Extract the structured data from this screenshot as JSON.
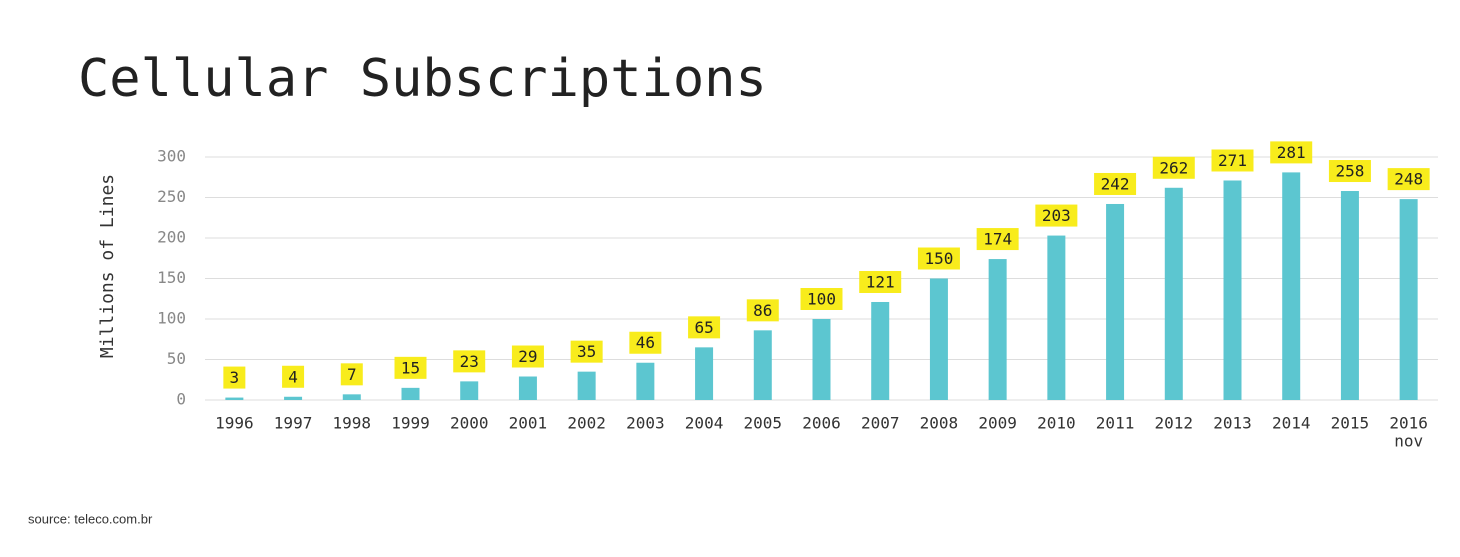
{
  "chart_data": {
    "type": "bar",
    "title": "Cellular Subscriptions",
    "y_label": "Millions of Lines",
    "categories": [
      "1996",
      "1997",
      "1998",
      "1999",
      "2000",
      "2001",
      "2002",
      "2003",
      "2004",
      "2005",
      "2006",
      "2007",
      "2008",
      "2009",
      "2010",
      "2011",
      "2012",
      "2013",
      "2014",
      "2015",
      "2016"
    ],
    "values": [
      3,
      4,
      7,
      15,
      23,
      29,
      35,
      46,
      65,
      86,
      100,
      121,
      150,
      174,
      203,
      242,
      262,
      271,
      281,
      258,
      248
    ],
    "color": "#5cc6d0",
    "label_color": "#f8ec1c",
    "ylim": [
      0,
      300
    ],
    "yticks": [
      0,
      50,
      100,
      150,
      200,
      250,
      300
    ],
    "grid": true,
    "last_category_note": "nov",
    "source": "source: teleco.com.br"
  }
}
